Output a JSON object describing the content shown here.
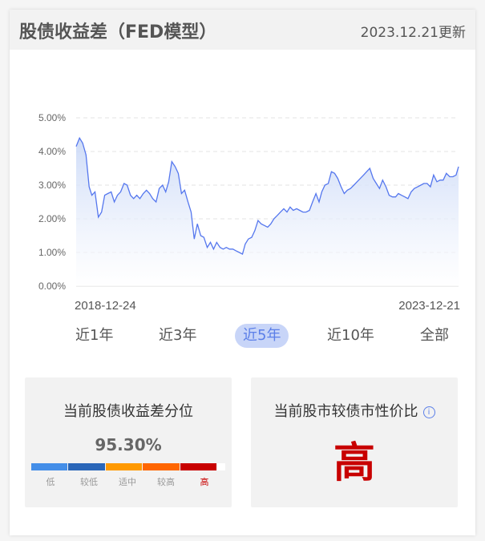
{
  "header": {
    "title": "股债收益差（FED模型）",
    "updated": "2023.12.21更新"
  },
  "tabs": [
    {
      "label": "近1年",
      "active": false
    },
    {
      "label": "近3年",
      "active": false
    },
    {
      "label": "近5年",
      "active": true
    },
    {
      "label": "近10年",
      "active": false
    },
    {
      "label": "全部",
      "active": false
    }
  ],
  "percentile_box": {
    "title": "当前股债收益差分位",
    "value": "95.30%",
    "levels": [
      {
        "label": "低",
        "color": "#448ee8"
      },
      {
        "label": "较低",
        "color": "#2a66b8"
      },
      {
        "label": "适中",
        "color": "#ff9900"
      },
      {
        "label": "较高",
        "color": "#ff6600"
      },
      {
        "label": "高",
        "color": "#c80000"
      }
    ],
    "current_level": "高"
  },
  "valuation_box": {
    "title": "当前股市较债市性价比",
    "info_icon": "info-icon",
    "value": "高"
  },
  "colors": {
    "line": "#5577ee",
    "active_tab": "#5b7fe8",
    "high": "#c80000"
  },
  "chart_data": {
    "type": "area",
    "y_ticks": [
      "0.00%",
      "1.00%",
      "2.00%",
      "3.00%",
      "4.00%",
      "5.00%"
    ],
    "ylim": [
      0,
      5
    ],
    "y_unit": "%",
    "x_labels": [
      "2018-12-24",
      "2023-12-21"
    ],
    "xlim": [
      "2018-12-24",
      "2023-12-21"
    ],
    "grid": true,
    "points": [
      [
        "2018-12-24",
        4.15
      ],
      [
        "2019-01-09",
        4.4
      ],
      [
        "2019-01-24",
        4.25
      ],
      [
        "2019-02-09",
        3.9
      ],
      [
        "2019-02-24",
        2.95
      ],
      [
        "2019-03-09",
        2.7
      ],
      [
        "2019-03-24",
        2.8
      ],
      [
        "2019-04-09",
        2.05
      ],
      [
        "2019-04-24",
        2.2
      ],
      [
        "2019-05-09",
        2.7
      ],
      [
        "2019-05-24",
        2.75
      ],
      [
        "2019-06-09",
        2.8
      ],
      [
        "2019-06-24",
        2.5
      ],
      [
        "2019-07-09",
        2.7
      ],
      [
        "2019-07-24",
        2.8
      ],
      [
        "2019-08-09",
        3.05
      ],
      [
        "2019-08-24",
        3.0
      ],
      [
        "2019-09-09",
        2.7
      ],
      [
        "2019-09-24",
        2.6
      ],
      [
        "2019-10-09",
        2.7
      ],
      [
        "2019-10-24",
        2.6
      ],
      [
        "2019-11-09",
        2.75
      ],
      [
        "2019-11-24",
        2.85
      ],
      [
        "2019-12-09",
        2.75
      ],
      [
        "2019-12-24",
        2.6
      ],
      [
        "2020-01-09",
        2.5
      ],
      [
        "2020-01-24",
        2.9
      ],
      [
        "2020-02-09",
        3.0
      ],
      [
        "2020-02-24",
        2.8
      ],
      [
        "2020-03-09",
        3.1
      ],
      [
        "2020-03-24",
        3.7
      ],
      [
        "2020-04-09",
        3.55
      ],
      [
        "2020-04-24",
        3.35
      ],
      [
        "2020-05-09",
        2.75
      ],
      [
        "2020-05-24",
        2.85
      ],
      [
        "2020-06-09",
        2.5
      ],
      [
        "2020-06-24",
        2.2
      ],
      [
        "2020-07-09",
        1.4
      ],
      [
        "2020-07-24",
        1.85
      ],
      [
        "2020-08-09",
        1.5
      ],
      [
        "2020-08-24",
        1.45
      ],
      [
        "2020-09-09",
        1.15
      ],
      [
        "2020-09-24",
        1.3
      ],
      [
        "2020-10-09",
        1.1
      ],
      [
        "2020-10-24",
        1.3
      ],
      [
        "2020-11-09",
        1.15
      ],
      [
        "2020-11-24",
        1.1
      ],
      [
        "2020-12-09",
        1.15
      ],
      [
        "2020-12-24",
        1.1
      ],
      [
        "2021-01-09",
        1.1
      ],
      [
        "2021-01-24",
        1.05
      ],
      [
        "2021-02-09",
        1.0
      ],
      [
        "2021-02-24",
        0.95
      ],
      [
        "2021-03-09",
        1.25
      ],
      [
        "2021-03-24",
        1.4
      ],
      [
        "2021-04-09",
        1.45
      ],
      [
        "2021-04-24",
        1.65
      ],
      [
        "2021-05-09",
        1.95
      ],
      [
        "2021-05-24",
        1.85
      ],
      [
        "2021-06-09",
        1.8
      ],
      [
        "2021-06-24",
        1.75
      ],
      [
        "2021-07-09",
        1.85
      ],
      [
        "2021-07-24",
        2.0
      ],
      [
        "2021-08-09",
        2.1
      ],
      [
        "2021-08-24",
        2.2
      ],
      [
        "2021-09-09",
        2.3
      ],
      [
        "2021-09-24",
        2.2
      ],
      [
        "2021-10-09",
        2.35
      ],
      [
        "2021-10-24",
        2.25
      ],
      [
        "2021-11-09",
        2.3
      ],
      [
        "2021-11-24",
        2.25
      ],
      [
        "2021-12-09",
        2.2
      ],
      [
        "2021-12-24",
        2.2
      ],
      [
        "2022-01-09",
        2.25
      ],
      [
        "2022-01-24",
        2.5
      ],
      [
        "2022-02-09",
        2.75
      ],
      [
        "2022-02-24",
        2.5
      ],
      [
        "2022-03-09",
        2.8
      ],
      [
        "2022-03-24",
        3.0
      ],
      [
        "2022-04-09",
        3.05
      ],
      [
        "2022-04-24",
        3.4
      ],
      [
        "2022-05-09",
        3.35
      ],
      [
        "2022-05-24",
        3.2
      ],
      [
        "2022-06-09",
        2.95
      ],
      [
        "2022-06-24",
        2.75
      ],
      [
        "2022-07-09",
        2.85
      ],
      [
        "2022-07-24",
        2.9
      ],
      [
        "2022-08-09",
        3.0
      ],
      [
        "2022-08-24",
        3.1
      ],
      [
        "2022-09-09",
        3.2
      ],
      [
        "2022-09-24",
        3.3
      ],
      [
        "2022-10-09",
        3.4
      ],
      [
        "2022-10-24",
        3.5
      ],
      [
        "2022-11-09",
        3.2
      ],
      [
        "2022-11-24",
        3.05
      ],
      [
        "2022-12-09",
        2.9
      ],
      [
        "2022-12-24",
        3.15
      ],
      [
        "2023-01-09",
        2.95
      ],
      [
        "2023-01-24",
        2.7
      ],
      [
        "2023-02-09",
        2.65
      ],
      [
        "2023-02-24",
        2.65
      ],
      [
        "2023-03-09",
        2.75
      ],
      [
        "2023-03-24",
        2.7
      ],
      [
        "2023-04-09",
        2.65
      ],
      [
        "2023-04-24",
        2.6
      ],
      [
        "2023-05-09",
        2.8
      ],
      [
        "2023-05-24",
        2.9
      ],
      [
        "2023-06-09",
        2.95
      ],
      [
        "2023-06-24",
        3.0
      ],
      [
        "2023-07-09",
        3.05
      ],
      [
        "2023-07-24",
        3.05
      ],
      [
        "2023-08-09",
        2.95
      ],
      [
        "2023-08-24",
        3.3
      ],
      [
        "2023-09-09",
        3.1
      ],
      [
        "2023-09-24",
        3.15
      ],
      [
        "2023-10-09",
        3.15
      ],
      [
        "2023-10-24",
        3.35
      ],
      [
        "2023-11-09",
        3.25
      ],
      [
        "2023-11-24",
        3.25
      ],
      [
        "2023-12-09",
        3.3
      ],
      [
        "2023-12-21",
        3.55
      ]
    ]
  }
}
